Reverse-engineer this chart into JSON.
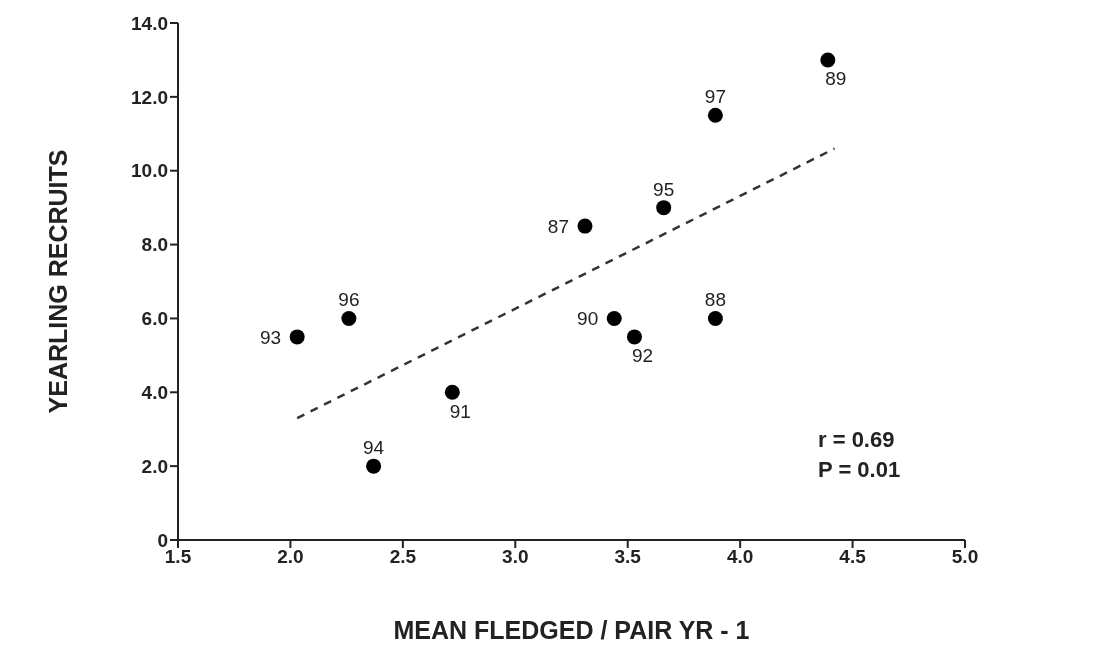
{
  "chart_data": {
    "type": "scatter",
    "xlabel": "MEAN  FLEDGED / PAIR  YR - 1",
    "ylabel": "YEARLING  RECRUITS",
    "series": [
      {
        "type": "scatter",
        "color": "#000000",
        "marker": "circle",
        "x": [
          2.03,
          2.26,
          2.37,
          2.72,
          3.31,
          3.44,
          3.53,
          3.66,
          3.89,
          3.89,
          4.39
        ],
        "values": [
          5.5,
          6.0,
          2.0,
          4.0,
          8.5,
          6.0,
          5.5,
          9.0,
          6.0,
          11.5,
          13.0
        ]
      },
      {
        "type": "line",
        "color": "#333333",
        "line_style": "dashed",
        "marker": "none",
        "x": [
          2.03,
          4.42
        ],
        "values": [
          3.3,
          10.6
        ]
      }
    ],
    "xlim": [
      1.5,
      5.0
    ],
    "xticks": [
      {
        "value": 1.5,
        "label": "1.5"
      },
      {
        "value": 2,
        "label": "2.0"
      },
      {
        "value": 2.5,
        "label": "2.5"
      },
      {
        "value": 3,
        "label": "3.0"
      },
      {
        "value": 3.5,
        "label": "3.5"
      },
      {
        "value": 4,
        "label": "4.0"
      },
      {
        "value": 4.5,
        "label": "4.5"
      },
      {
        "value": 5,
        "label": "5.0"
      }
    ],
    "ylim": [
      0,
      14
    ],
    "yticks": [
      0,
      {
        "value": 2,
        "label": "2.0"
      },
      {
        "value": 4,
        "label": "4.0"
      },
      {
        "value": 6,
        "label": "6.0"
      },
      {
        "value": 8,
        "label": "8.0"
      },
      {
        "value": 10,
        "label": "10.0"
      },
      {
        "value": 12,
        "label": "12.0"
      },
      {
        "value": 14,
        "label": "14.0"
      }
    ],
    "grid": false,
    "legend": false,
    "annotations": [
      {
        "text": "93",
        "x": 2.03,
        "y": 5.5
      },
      {
        "text": "96",
        "x": 2.26,
        "y": 6.0
      },
      {
        "text": "94",
        "x": 2.37,
        "y": 2.0
      },
      {
        "text": "91",
        "x": 2.72,
        "y": 4.0
      },
      {
        "text": "87",
        "x": 3.31,
        "y": 8.5
      },
      {
        "text": "90",
        "x": 3.44,
        "y": 6.0
      },
      {
        "text": "92",
        "x": 3.53,
        "y": 5.5
      },
      {
        "text": "95",
        "x": 3.66,
        "y": 9.0
      },
      {
        "text": "88",
        "x": 3.89,
        "y": 6.0
      },
      {
        "text": "97",
        "x": 3.89,
        "y": 11.5
      },
      {
        "text": "89",
        "x": 4.39,
        "y": 13.0
      },
      "r = 0.69",
      "P = 0.01"
    ]
  }
}
